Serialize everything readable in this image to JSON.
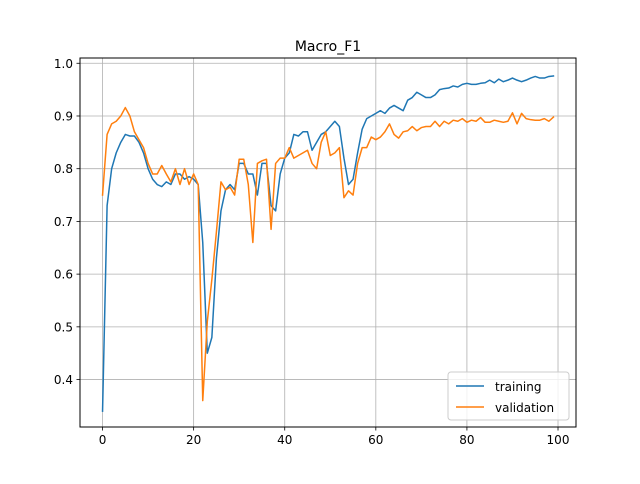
{
  "chart_data": {
    "type": "line",
    "title": "Macro_F1",
    "xlabel": "",
    "ylabel": "",
    "xlim": [
      -4.95,
      103.95
    ],
    "ylim": [
      0.31,
      1.01
    ],
    "xticks": [
      0,
      20,
      40,
      60,
      80,
      100
    ],
    "yticks": [
      0.4,
      0.5,
      0.6,
      0.7,
      0.8,
      0.9,
      1.0
    ],
    "xtick_labels": [
      "0",
      "20",
      "40",
      "60",
      "80",
      "100"
    ],
    "ytick_labels": [
      "0.4",
      "0.5",
      "0.6",
      "0.7",
      "0.8",
      "0.9",
      "1.0"
    ],
    "grid": true,
    "legend_position": "bottom-right",
    "series": [
      {
        "name": "training",
        "color": "#1f77b4",
        "values": [
          0.34,
          0.73,
          0.8,
          0.83,
          0.85,
          0.865,
          0.862,
          0.862,
          0.85,
          0.83,
          0.8,
          0.78,
          0.77,
          0.766,
          0.775,
          0.77,
          0.79,
          0.79,
          0.78,
          0.785,
          0.78,
          0.77,
          0.66,
          0.45,
          0.48,
          0.63,
          0.72,
          0.76,
          0.77,
          0.76,
          0.81,
          0.81,
          0.79,
          0.79,
          0.75,
          0.81,
          0.81,
          0.73,
          0.72,
          0.79,
          0.82,
          0.83,
          0.865,
          0.862,
          0.87,
          0.87,
          0.835,
          0.85,
          0.865,
          0.87,
          0.88,
          0.89,
          0.88,
          0.82,
          0.77,
          0.78,
          0.83,
          0.875,
          0.895,
          0.9,
          0.905,
          0.91,
          0.905,
          0.915,
          0.92,
          0.915,
          0.91,
          0.93,
          0.935,
          0.945,
          0.94,
          0.935,
          0.935,
          0.94,
          0.95,
          0.952,
          0.953,
          0.957,
          0.955,
          0.96,
          0.962,
          0.96,
          0.96,
          0.962,
          0.963,
          0.968,
          0.963,
          0.97,
          0.965,
          0.968,
          0.972,
          0.968,
          0.965,
          0.968,
          0.972,
          0.975,
          0.972,
          0.972,
          0.975,
          0.976
        ]
      },
      {
        "name": "validation",
        "color": "#ff7f0e",
        "values": [
          0.75,
          0.865,
          0.885,
          0.89,
          0.9,
          0.916,
          0.9,
          0.87,
          0.855,
          0.84,
          0.81,
          0.79,
          0.79,
          0.806,
          0.79,
          0.775,
          0.8,
          0.77,
          0.8,
          0.77,
          0.79,
          0.77,
          0.36,
          0.51,
          0.59,
          0.68,
          0.775,
          0.76,
          0.765,
          0.75,
          0.818,
          0.818,
          0.77,
          0.66,
          0.81,
          0.815,
          0.818,
          0.685,
          0.81,
          0.82,
          0.82,
          0.84,
          0.82,
          0.825,
          0.83,
          0.835,
          0.81,
          0.8,
          0.85,
          0.87,
          0.825,
          0.83,
          0.84,
          0.745,
          0.758,
          0.75,
          0.81,
          0.84,
          0.84,
          0.86,
          0.855,
          0.86,
          0.87,
          0.885,
          0.865,
          0.858,
          0.87,
          0.872,
          0.88,
          0.872,
          0.878,
          0.88,
          0.88,
          0.89,
          0.88,
          0.89,
          0.885,
          0.892,
          0.89,
          0.895,
          0.888,
          0.892,
          0.89,
          0.897,
          0.888,
          0.888,
          0.892,
          0.89,
          0.888,
          0.89,
          0.906,
          0.885,
          0.905,
          0.895,
          0.893,
          0.892,
          0.892,
          0.895,
          0.89,
          0.898
        ]
      }
    ]
  }
}
